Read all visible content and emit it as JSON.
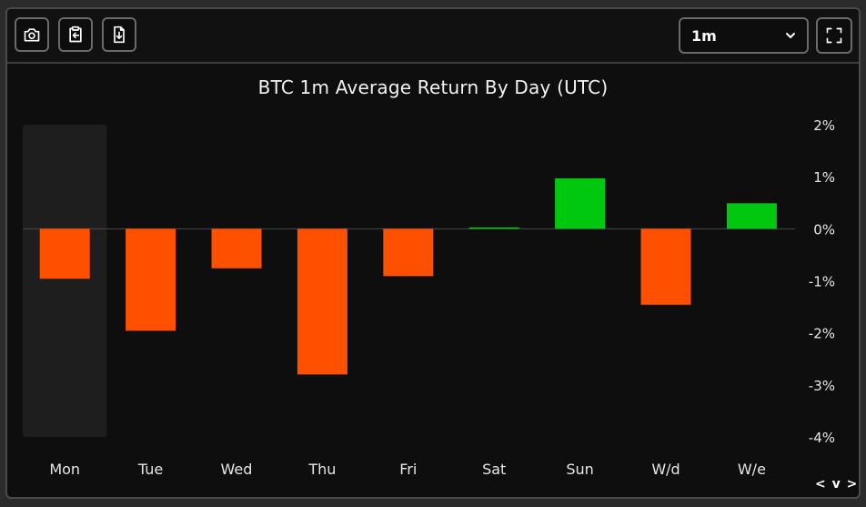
{
  "toolbar": {
    "buttons": [
      {
        "icon": "camera-icon"
      },
      {
        "icon": "clipboard-copy-icon"
      },
      {
        "icon": "download-file-icon"
      }
    ],
    "timeframe": {
      "selected": "1m"
    },
    "fullscreen": {
      "icon": "fullscreen-icon"
    }
  },
  "nav": {
    "arrows": "< v >"
  },
  "colors": {
    "positive": "#00c80f",
    "negative": "#ff5000",
    "highlight": "#1e1e1e"
  },
  "chart_data": {
    "type": "bar",
    "title": "BTC 1m Average Return By Day (UTC)",
    "categories": [
      "Mon",
      "Tue",
      "Wed",
      "Thu",
      "Fri",
      "Sat",
      "Sun",
      "W/d",
      "W/e"
    ],
    "values": [
      -0.96,
      -1.96,
      -0.76,
      -2.8,
      -0.91,
      0.02,
      0.97,
      -1.46,
      0.49
    ],
    "unit": "%",
    "ylim": [
      -4,
      2
    ],
    "yticks": [
      "2%",
      "1%",
      "0%",
      "-1%",
      "-2%",
      "-3%",
      "-4%"
    ],
    "highlighted_category": "Mon",
    "axis_position": "right",
    "grid": false,
    "legend": "none"
  }
}
